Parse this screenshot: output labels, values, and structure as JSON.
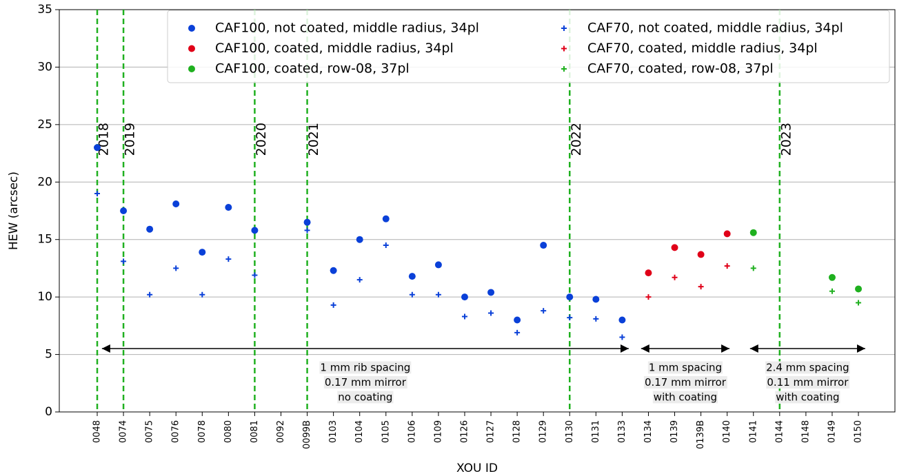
{
  "chart_data": {
    "type": "scatter",
    "xlabel": "XOU ID",
    "ylabel": "HEW (arcsec)",
    "categories": [
      "0048",
      "0074",
      "0075",
      "0076",
      "0078",
      "0080",
      "0081",
      "0092",
      "0099B",
      "0103",
      "0104",
      "0105",
      "0106",
      "0109",
      "0126",
      "0127",
      "0128",
      "0129",
      "0130",
      "0131",
      "0133",
      "0134",
      "0139",
      "0139B",
      "0140",
      "0141",
      "0144",
      "0148",
      "0149",
      "0150"
    ],
    "ylim": [
      0,
      35
    ],
    "yticks": [
      0,
      5,
      10,
      15,
      20,
      25,
      30,
      35
    ],
    "grid": true,
    "legend": "upper right",
    "series": [
      {
        "name": "CAF100, not coated, middle radius, 34pl",
        "color": "#0a40d8",
        "marker": "o",
        "values": [
          23,
          17.5,
          15.9,
          18.1,
          13.9,
          17.8,
          15.8,
          null,
          16.5,
          12.3,
          15,
          16.8,
          11.8,
          12.8,
          10,
          10.4,
          8,
          14.5,
          10,
          9.8,
          8,
          null,
          null,
          null,
          null,
          null,
          null,
          null,
          null,
          null
        ]
      },
      {
        "name": "CAF100, coated, middle radius, 34pl",
        "color": "#e00018",
        "marker": "o",
        "values": [
          null,
          null,
          null,
          null,
          null,
          null,
          null,
          null,
          null,
          null,
          null,
          null,
          null,
          null,
          null,
          null,
          null,
          null,
          null,
          null,
          null,
          12.1,
          14.3,
          13.7,
          15.5,
          null,
          null,
          null,
          null,
          null
        ]
      },
      {
        "name": "CAF100, coated, row-08, 37pl",
        "color": "#1fb01f",
        "marker": "o",
        "values": [
          null,
          null,
          null,
          null,
          null,
          null,
          null,
          null,
          null,
          null,
          null,
          null,
          null,
          null,
          null,
          null,
          null,
          null,
          null,
          null,
          null,
          null,
          null,
          null,
          null,
          15.6,
          null,
          null,
          11.7,
          10.7
        ]
      },
      {
        "name": "CAF70, not coated, middle radius, 34pl",
        "color": "#0a40d8",
        "marker": "+",
        "values": [
          19,
          13.1,
          10.2,
          12.5,
          10.2,
          13.3,
          11.9,
          null,
          15.8,
          9.3,
          11.5,
          14.5,
          10.2,
          10.2,
          8.3,
          8.6,
          6.9,
          8.8,
          8.2,
          8.1,
          6.5,
          null,
          null,
          null,
          null,
          null,
          null,
          null,
          null,
          null
        ]
      },
      {
        "name": "CAF70, coated, middle radius, 34pl",
        "color": "#e00018",
        "marker": "+",
        "values": [
          null,
          null,
          null,
          null,
          null,
          null,
          null,
          null,
          null,
          null,
          null,
          null,
          null,
          null,
          null,
          null,
          null,
          null,
          null,
          null,
          null,
          10,
          11.7,
          10.9,
          12.7,
          null,
          null,
          null,
          null,
          null
        ]
      },
      {
        "name": "CAF70, coated, row-08, 37pl",
        "color": "#1fb01f",
        "marker": "+",
        "values": [
          null,
          null,
          null,
          null,
          null,
          null,
          null,
          null,
          null,
          null,
          null,
          null,
          null,
          null,
          null,
          null,
          null,
          null,
          null,
          null,
          null,
          null,
          null,
          null,
          null,
          12.5,
          null,
          null,
          10.5,
          9.5
        ]
      }
    ],
    "year_lines": [
      {
        "category": "0048",
        "label": "2018"
      },
      {
        "category": "0074",
        "label": "2019"
      },
      {
        "category": "0081",
        "label": "2020"
      },
      {
        "category": "0099B",
        "label": "2021"
      },
      {
        "category": "0130",
        "label": "2022"
      },
      {
        "category": "0144",
        "label": "2023"
      }
    ],
    "year_line_color": "#1fb01f",
    "annotations": [
      {
        "lines": [
          "1 mm rib spacing",
          "0.17 mm mirror",
          "no coating"
        ]
      },
      {
        "lines": [
          "1 mm spacing",
          "0.17 mm mirror",
          "with coating"
        ]
      },
      {
        "lines": [
          "2.4 mm spacing",
          "0.11 mm mirror",
          "with coating"
        ]
      }
    ]
  }
}
